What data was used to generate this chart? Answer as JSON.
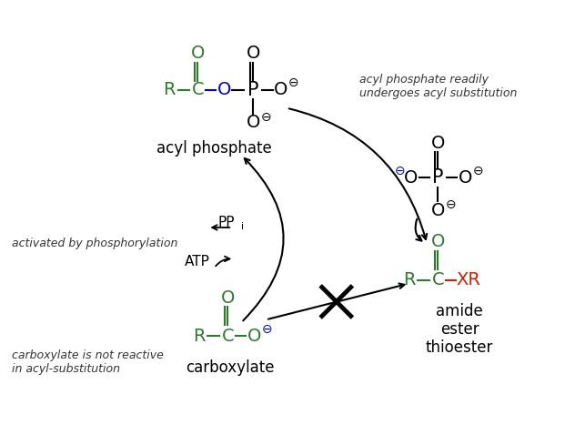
{
  "bg_color": "#ffffff",
  "figsize": [
    6.32,
    4.78
  ],
  "dpi": 100,
  "colors": {
    "green": "#2d7a2d",
    "blue": "#0000bb",
    "red": "#cc2200",
    "black": "#000000",
    "dark": "#333333"
  },
  "labels": {
    "acyl_phosphate": "acyl phosphate",
    "carboxylate": "carboxylate",
    "amide": "amide",
    "ester": "ester",
    "thioester": "thioester",
    "note_tr": "acyl phosphate readily\nundergoes acyl substitution",
    "note_lm": "activated by phosphorylation",
    "note_bl": "carboxylate is not reactive\nin acyl-substitution",
    "ppi": "PPi",
    "atp": "ATP"
  }
}
